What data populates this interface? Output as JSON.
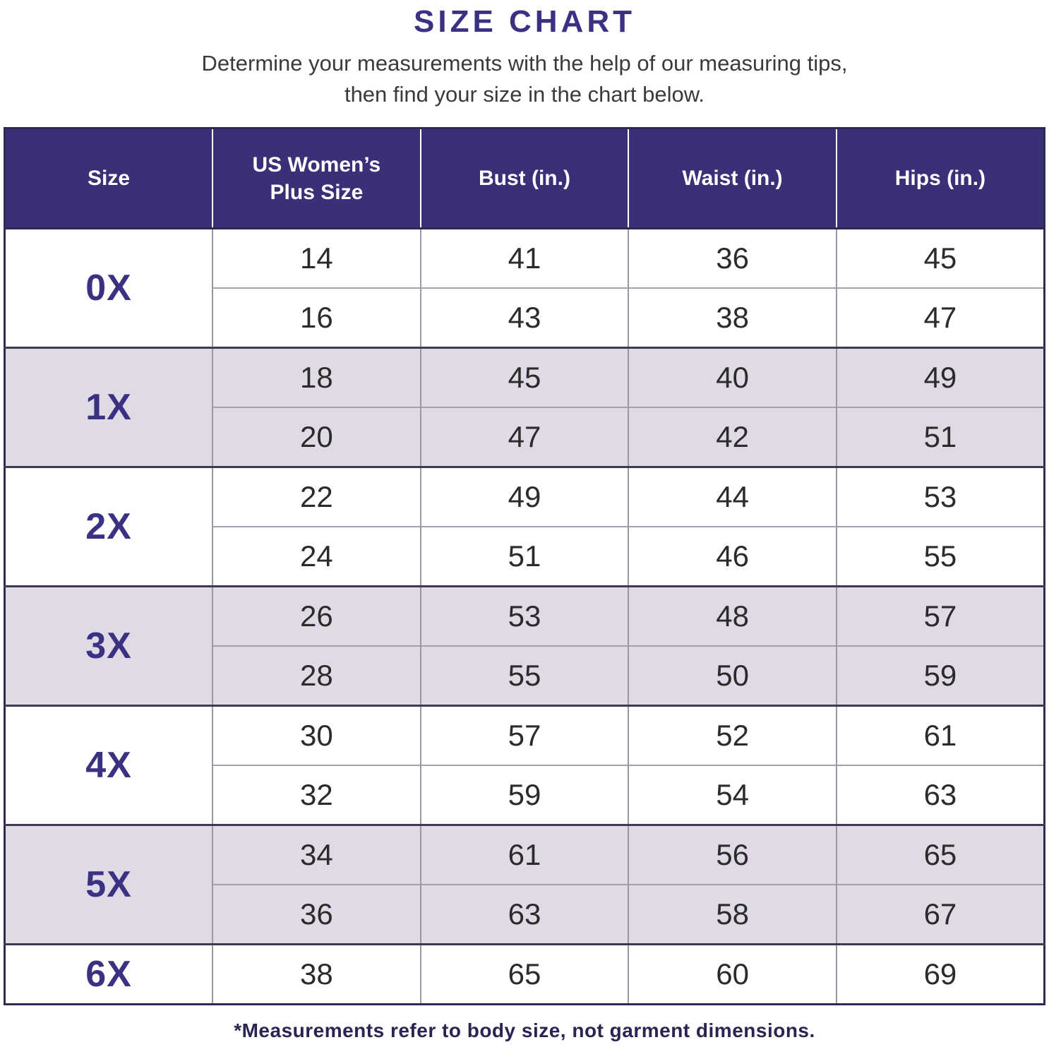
{
  "title": "SIZE CHART",
  "subtitle": [
    "Determine your measurements with the help of our measuring tips,",
    "then find your size in the chart below."
  ],
  "footnote": "*Measurements refer to body size, not garment dimensions.",
  "colors": {
    "header_bg": "#3A3077",
    "accent": "#3B3182",
    "row_alt": "#DFDAE5",
    "border_dark": "#2D2A52",
    "grid_gray": "#9B98A4",
    "body_text": "#2B2B2B",
    "subtitle_text": "#3A3A3A",
    "footnote_text": "#2B2453"
  },
  "chart_data": {
    "type": "table",
    "title": "SIZE CHART",
    "columns": [
      "Size",
      "US Women’s Plus Size",
      "Bust (in.)",
      "Waist (in.)",
      "Hips (in.)"
    ],
    "groups": [
      {
        "size": "0X",
        "shaded": false,
        "rows": [
          [
            "14",
            "41",
            "36",
            "45"
          ],
          [
            "16",
            "43",
            "38",
            "47"
          ]
        ]
      },
      {
        "size": "1X",
        "shaded": true,
        "rows": [
          [
            "18",
            "45",
            "40",
            "49"
          ],
          [
            "20",
            "47",
            "42",
            "51"
          ]
        ]
      },
      {
        "size": "2X",
        "shaded": false,
        "rows": [
          [
            "22",
            "49",
            "44",
            "53"
          ],
          [
            "24",
            "51",
            "46",
            "55"
          ]
        ]
      },
      {
        "size": "3X",
        "shaded": true,
        "rows": [
          [
            "26",
            "53",
            "48",
            "57"
          ],
          [
            "28",
            "55",
            "50",
            "59"
          ]
        ]
      },
      {
        "size": "4X",
        "shaded": false,
        "rows": [
          [
            "30",
            "57",
            "52",
            "61"
          ],
          [
            "32",
            "59",
            "54",
            "63"
          ]
        ]
      },
      {
        "size": "5X",
        "shaded": true,
        "rows": [
          [
            "34",
            "61",
            "56",
            "65"
          ],
          [
            "36",
            "63",
            "58",
            "67"
          ]
        ]
      },
      {
        "size": "6X",
        "shaded": false,
        "rows": [
          [
            "38",
            "65",
            "60",
            "69"
          ]
        ]
      }
    ]
  }
}
